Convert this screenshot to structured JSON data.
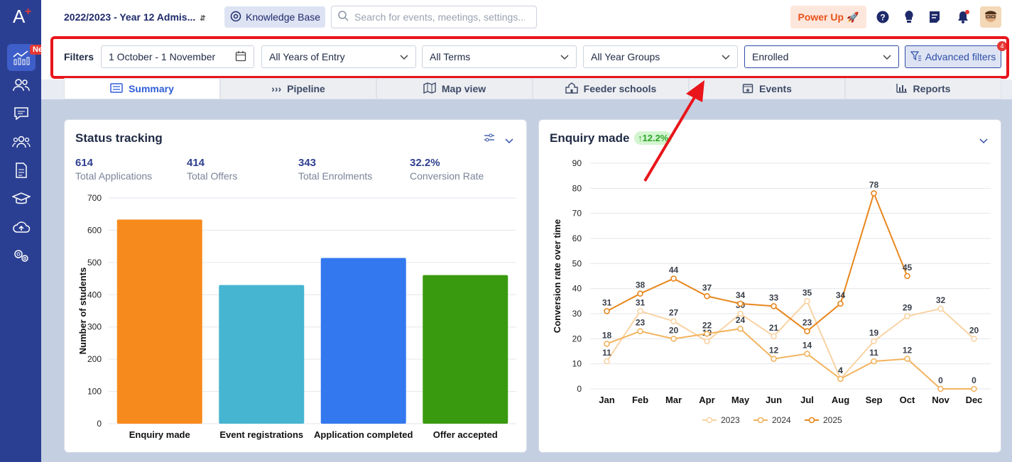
{
  "sidebar": {
    "logo": "A",
    "new_badge": "New",
    "items": [
      "dashboard-icon",
      "users-icon",
      "messages-icon",
      "groups-icon",
      "document-icon",
      "graduation-icon",
      "upload-icon",
      "settings-icon"
    ]
  },
  "topbar": {
    "year_selector": "2022/2023 - Year 12 Admis...",
    "knowledge_base": "Knowledge Base",
    "search_placeholder": "Search for events, meetings, settings...",
    "power_up": "Power Up"
  },
  "filters": {
    "label": "Filters",
    "date_range": "1 October - 1 November",
    "years_of_entry": "All Years of Entry",
    "terms": "All Terms",
    "year_groups": "All Year Groups",
    "status": "Enrolled",
    "advanced": "Advanced filters",
    "advanced_count": "4"
  },
  "tabs": [
    "Summary",
    "Pipeline",
    "Map view",
    "Feeder schools",
    "Events",
    "Reports"
  ],
  "status_card": {
    "title": "Status tracking",
    "stats": [
      {
        "value": "614",
        "label": "Total Applications"
      },
      {
        "value": "414",
        "label": "Total Offers"
      },
      {
        "value": "343",
        "label": "Total Enrolments"
      },
      {
        "value": "32.2%",
        "label": "Conversion Rate"
      }
    ]
  },
  "enquiry_card": {
    "title": "Enquiry made",
    "growth": "12.2%"
  },
  "colors": {
    "accent": "#2b3f92",
    "highlight": "#e8151b"
  },
  "chart_data": [
    {
      "type": "bar",
      "categories": [
        "Enquiry made",
        "Event registrations",
        "Application completed",
        "Offer accepted"
      ],
      "values": [
        633,
        430,
        514,
        461
      ],
      "colors": [
        "#f78a1d",
        "#46b5d1",
        "#3478f0",
        "#3a9a0f"
      ],
      "ylabel": "Number of students",
      "ylim": [
        0,
        700
      ],
      "yticks": [
        0,
        100,
        200,
        300,
        400,
        500,
        600,
        700
      ],
      "grid": true
    },
    {
      "type": "line",
      "categories": [
        "Jan",
        "Feb",
        "Mar",
        "Apr",
        "May",
        "Jun",
        "Jul",
        "Aug",
        "Sep",
        "Oct",
        "Nov",
        "Dec"
      ],
      "ylabel": "Conversion rate over time",
      "ylim": [
        0,
        90
      ],
      "yticks": [
        0,
        10,
        20,
        30,
        40,
        50,
        60,
        70,
        80,
        90
      ],
      "legend_position": "bottom",
      "series": [
        {
          "name": "2023",
          "color": "#f9d3a3",
          "values": [
            11,
            31,
            27,
            19,
            30,
            21,
            35,
            4,
            19,
            29,
            32,
            20
          ]
        },
        {
          "name": "2024",
          "color": "#f2b35e",
          "values": [
            18,
            23,
            20,
            22,
            24,
            12,
            14,
            4,
            11,
            12,
            0,
            0
          ]
        },
        {
          "name": "2025",
          "color": "#e8861c",
          "values": [
            31,
            38,
            44,
            37,
            34,
            33,
            23,
            34,
            78,
            45,
            null,
            null
          ]
        }
      ]
    }
  ]
}
